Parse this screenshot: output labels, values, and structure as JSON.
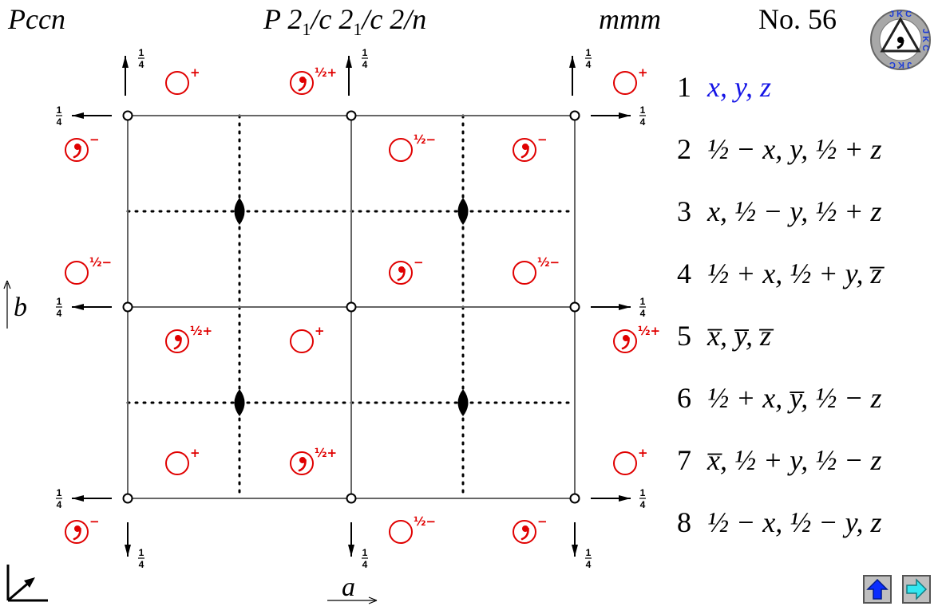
{
  "header": {
    "hm_symbol": "Pccn",
    "full_symbol_parts": [
      "P 2",
      "1",
      "/c 2",
      "1",
      "/c 2/n"
    ],
    "point_group": "mmm",
    "number": "No. 56"
  },
  "colors": {
    "header_blue": "#1515e6",
    "position_red": "#e00000",
    "highlight_blue": "#1515e6"
  },
  "diagram": {
    "axis_a_label": "a",
    "axis_b_label": "b",
    "screw_height_label": "1/4",
    "position_labels": {
      "plus": "+",
      "minus": "−",
      "half_plus": "½+",
      "half_minus": "½−"
    },
    "icons": [
      "comma-circle-icon",
      "circle-icon",
      "inversion-center-icon",
      "twofold-rotation-axis-icon",
      "twofold-screw-axis-icon",
      "glide-plane-icon",
      "origin-axes-icon"
    ]
  },
  "operations": [
    {
      "num": "1",
      "expr": "x, y, z"
    },
    {
      "num": "2",
      "expr": "½ − x, y, ½ + z"
    },
    {
      "num": "3",
      "expr": "x, ½ − y, ½ + z"
    },
    {
      "num": "4",
      "expr": "½ + x, ½ + y, z̅"
    },
    {
      "num": "5",
      "expr": "x̅, y̅, z̅"
    },
    {
      "num": "6",
      "expr": "½ + x, y̅, ½ − z"
    },
    {
      "num": "7",
      "expr": "x̅, ½ + y, ½ − z"
    },
    {
      "num": "8",
      "expr": "½ − x, ½ − y, z"
    }
  ],
  "logo": {
    "text": "JKC",
    "icon": "jkc-logo-icon"
  },
  "navigation": {
    "up_icon": "up-arrow-icon",
    "next_icon": "right-arrow-icon"
  }
}
